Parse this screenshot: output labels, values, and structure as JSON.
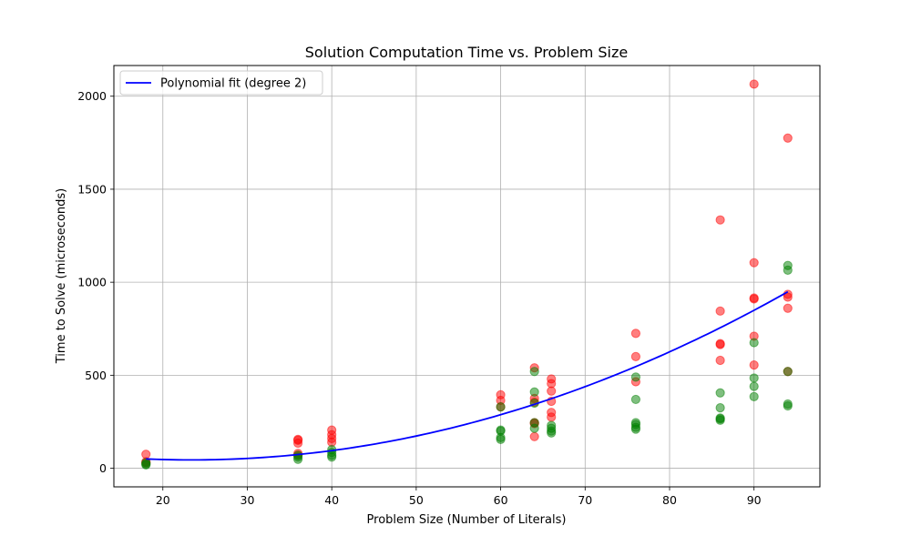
{
  "chart_data": {
    "type": "scatter",
    "title": "Solution Computation Time vs. Problem Size",
    "xlabel": "Problem Size (Number of Literals)",
    "ylabel": "Time to Solve (microseconds)",
    "xlim": [
      14.2,
      97.8
    ],
    "ylim": [
      -100,
      2165
    ],
    "xticks": [
      20,
      30,
      40,
      50,
      60,
      70,
      80,
      90
    ],
    "yticks": [
      0,
      500,
      1000,
      1500,
      2000
    ],
    "grid": true,
    "legend": {
      "placement": "top-left",
      "entries": [
        "Polynomial fit (degree 2)"
      ]
    },
    "series": [
      {
        "color": "#ff0000",
        "points": [
          [
            18,
            75
          ],
          [
            18,
            35
          ],
          [
            18,
            28
          ],
          [
            36,
            155
          ],
          [
            36,
            150
          ],
          [
            36,
            135
          ],
          [
            36,
            80
          ],
          [
            36,
            70
          ],
          [
            40,
            205
          ],
          [
            40,
            180
          ],
          [
            40,
            160
          ],
          [
            40,
            140
          ],
          [
            60,
            395
          ],
          [
            60,
            365
          ],
          [
            60,
            330
          ],
          [
            64,
            540
          ],
          [
            64,
            375
          ],
          [
            64,
            355
          ],
          [
            64,
            245
          ],
          [
            64,
            240
          ],
          [
            64,
            170
          ],
          [
            66,
            480
          ],
          [
            66,
            455
          ],
          [
            66,
            415
          ],
          [
            66,
            360
          ],
          [
            66,
            300
          ],
          [
            66,
            275
          ],
          [
            76,
            725
          ],
          [
            76,
            600
          ],
          [
            76,
            465
          ],
          [
            86,
            1335
          ],
          [
            86,
            845
          ],
          [
            86,
            670
          ],
          [
            86,
            665
          ],
          [
            86,
            580
          ],
          [
            90,
            2065
          ],
          [
            90,
            1105
          ],
          [
            90,
            915
          ],
          [
            90,
            910
          ],
          [
            90,
            710
          ],
          [
            90,
            555
          ],
          [
            94,
            1775
          ],
          [
            94,
            935
          ],
          [
            94,
            920
          ],
          [
            94,
            860
          ],
          [
            94,
            520
          ]
        ]
      },
      {
        "color": "#008000",
        "points": [
          [
            18,
            30
          ],
          [
            18,
            22
          ],
          [
            18,
            18
          ],
          [
            36,
            70
          ],
          [
            36,
            60
          ],
          [
            36,
            48
          ],
          [
            40,
            100
          ],
          [
            40,
            85
          ],
          [
            40,
            70
          ],
          [
            40,
            60
          ],
          [
            60,
            330
          ],
          [
            60,
            205
          ],
          [
            60,
            200
          ],
          [
            60,
            165
          ],
          [
            60,
            155
          ],
          [
            64,
            520
          ],
          [
            64,
            410
          ],
          [
            64,
            350
          ],
          [
            64,
            245
          ],
          [
            64,
            215
          ],
          [
            66,
            230
          ],
          [
            66,
            215
          ],
          [
            66,
            200
          ],
          [
            66,
            190
          ],
          [
            76,
            490
          ],
          [
            76,
            370
          ],
          [
            76,
            245
          ],
          [
            76,
            235
          ],
          [
            76,
            220
          ],
          [
            76,
            210
          ],
          [
            86,
            405
          ],
          [
            86,
            325
          ],
          [
            86,
            270
          ],
          [
            86,
            265
          ],
          [
            86,
            258
          ],
          [
            90,
            675
          ],
          [
            90,
            485
          ],
          [
            90,
            440
          ],
          [
            90,
            385
          ],
          [
            94,
            1090
          ],
          [
            94,
            1065
          ],
          [
            94,
            520
          ],
          [
            94,
            345
          ],
          [
            94,
            335
          ]
        ]
      },
      {
        "name": "Polynomial fit (degree 2)",
        "color": "#0000ff",
        "line": true,
        "x_range": [
          18,
          94
        ],
        "fit_coefficients": {
          "a": 0.1813,
          "b": -8.483,
          "c": 144.1
        }
      }
    ]
  }
}
